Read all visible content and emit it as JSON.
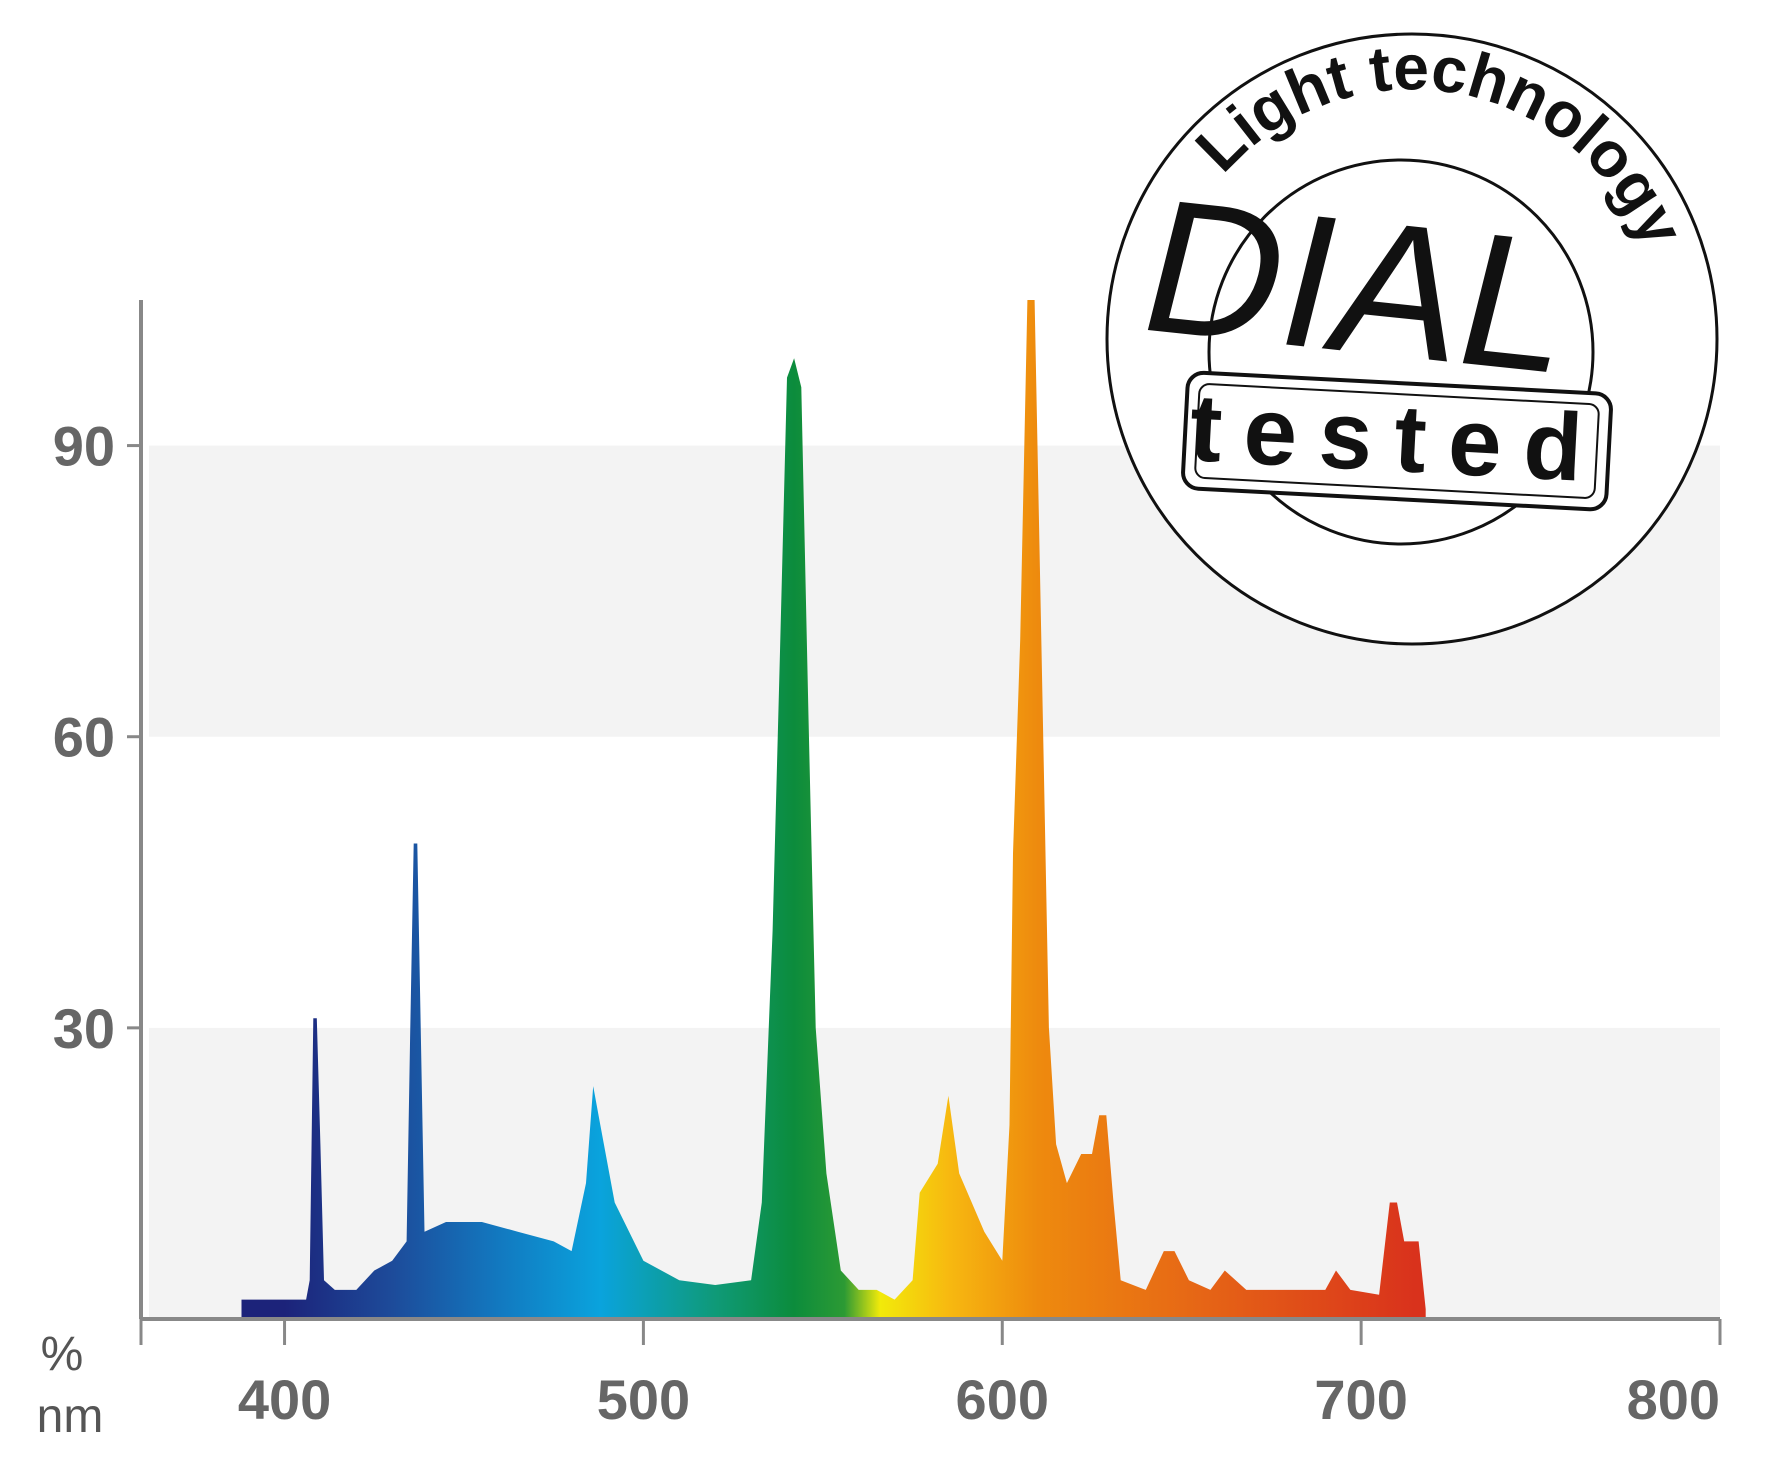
{
  "chart_data": {
    "type": "area",
    "y_axis_label": "%",
    "x_axis_label": "nm",
    "x": [
      388,
      406,
      407,
      408,
      409,
      410,
      411,
      414,
      420,
      425,
      430,
      434,
      435,
      436,
      437,
      438,
      439,
      445,
      455,
      465,
      475,
      480,
      484,
      486,
      488,
      492,
      500,
      510,
      520,
      530,
      533,
      536,
      538,
      540,
      542,
      544,
      546,
      548,
      551,
      555,
      560,
      565,
      570,
      575,
      577,
      582,
      585,
      588,
      595,
      600,
      602,
      603,
      605,
      607,
      609,
      611,
      613,
      615,
      618,
      622,
      625,
      627,
      629,
      631,
      633,
      640,
      645,
      648,
      652,
      658,
      662,
      668,
      690,
      693,
      697,
      705,
      708,
      710,
      712,
      716,
      718
    ],
    "values": [
      2,
      2,
      4,
      31,
      31,
      18,
      4,
      3,
      3,
      5,
      6,
      8,
      29,
      49,
      49,
      29,
      9,
      10,
      10,
      9,
      8,
      7,
      14,
      24,
      20,
      12,
      6,
      4,
      3.5,
      4,
      12,
      40,
      68,
      97,
      99,
      96,
      62,
      30,
      15,
      5,
      3,
      3,
      2,
      4,
      13,
      16,
      23,
      15,
      9,
      6,
      20,
      48,
      70,
      105,
      105,
      68,
      30,
      18,
      14,
      17,
      17,
      21,
      21,
      12,
      4,
      3,
      7,
      7,
      4,
      3,
      5,
      3,
      3,
      5,
      3,
      2.5,
      12,
      12,
      8,
      8,
      1
    ],
    "gradient": [
      {
        "x": 400,
        "color": "#1c237a"
      },
      {
        "x": 430,
        "color": "#1d4b9a"
      },
      {
        "x": 460,
        "color": "#1279c0"
      },
      {
        "x": 488,
        "color": "#0aa3dd"
      },
      {
        "x": 520,
        "color": "#0f9a78"
      },
      {
        "x": 542,
        "color": "#0c8c3c"
      },
      {
        "x": 556,
        "color": "#2c9a34"
      },
      {
        "x": 566,
        "color": "#f2ea0a"
      },
      {
        "x": 585,
        "color": "#f7b910"
      },
      {
        "x": 610,
        "color": "#ee8a0e"
      },
      {
        "x": 650,
        "color": "#e76a15"
      },
      {
        "x": 715,
        "color": "#d9321c"
      }
    ],
    "xlim": [
      360,
      800
    ],
    "xticks": [
      400,
      500,
      600,
      700,
      800
    ],
    "ylim": [
      0,
      105
    ],
    "yticks": [
      30,
      60,
      90
    ],
    "bands": true
  },
  "badge": {
    "arc_text": "Light technology",
    "logo": "DIAL",
    "label": "tested"
  }
}
